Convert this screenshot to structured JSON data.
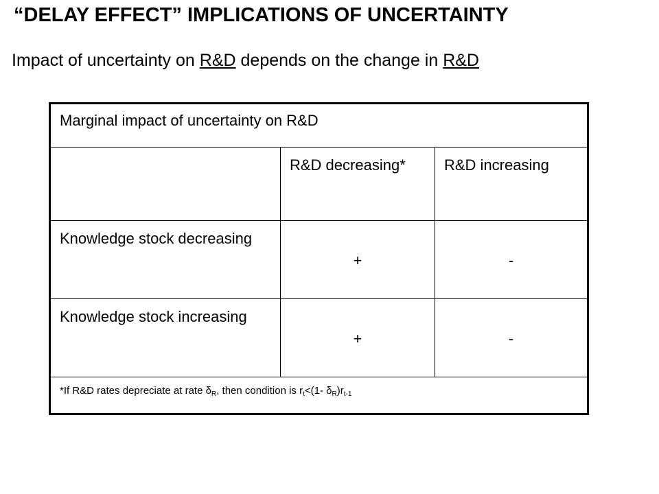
{
  "title": "“DELAY EFFECT” IMPLICATIONS OF UNCERTAINTY",
  "subtitle": {
    "part1": "Impact of uncertainty on ",
    "link1": "R&D",
    "part2": " depends on the change in ",
    "link2": "R&D"
  },
  "table": {
    "caption": "Marginal impact of uncertainty on R&D",
    "column_headers": [
      "",
      "R&D decreasing*",
      "R&D increasing"
    ],
    "rows": [
      {
        "label": "Knowledge stock decreasing",
        "values": [
          "+",
          "-"
        ]
      },
      {
        "label": "Knowledge stock increasing",
        "values": [
          "+",
          "-"
        ]
      }
    ],
    "footnote": {
      "text1": "*If R&D rates depreciate at rate δ",
      "sub1": "R",
      "text2": ", then condition is r",
      "sub2": "t",
      "text3": "<(1- δ",
      "sub3": "R",
      "text4": ")r",
      "sub4": "t-1"
    }
  }
}
